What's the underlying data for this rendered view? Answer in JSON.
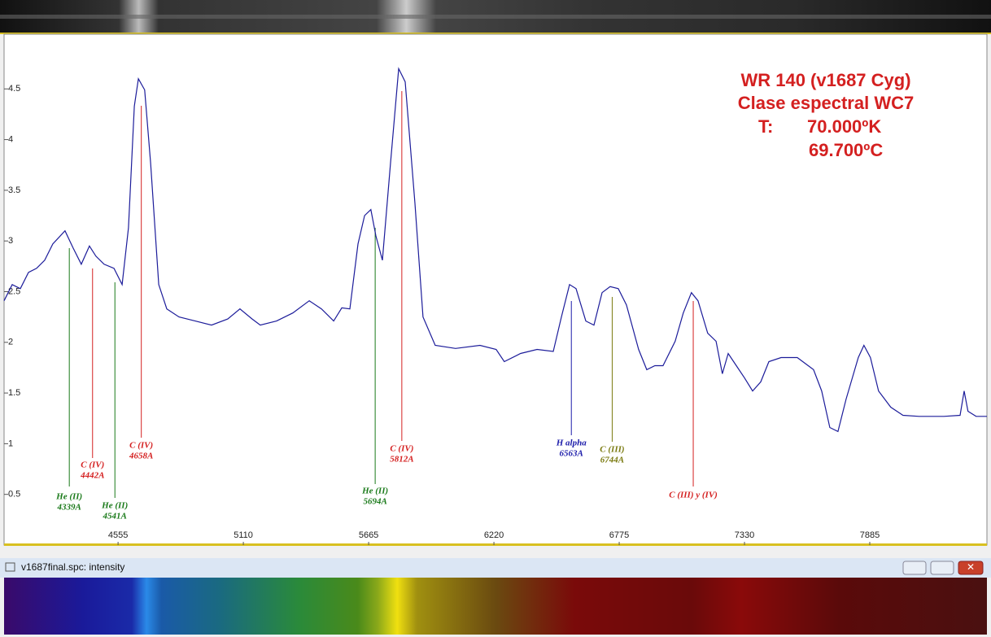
{
  "chart_data": {
    "type": "line",
    "title": [
      "WR 140 (v1687 Cyg)",
      "Clase espectral WC7"
    ],
    "temperature": {
      "label": "T:",
      "kelvin": "70.000ºK",
      "celsius": "69.700ºC"
    },
    "window_title": "v1687final.spc: intensity",
    "line_color": "#1c1c9a",
    "xlim": [
      4050,
      8404
    ],
    "ylim": [
      0,
      5.04
    ],
    "xticks": [
      4555,
      5110,
      5665,
      6220,
      6775,
      7330,
      7885
    ],
    "yticks": [
      0.5,
      1,
      1.5,
      2,
      2.5,
      3,
      3.5,
      4,
      4.5
    ],
    "x": [
      4050,
      4086,
      4122,
      4158,
      4194,
      4230,
      4266,
      4320,
      4356,
      4392,
      4428,
      4457,
      4493,
      4537,
      4573,
      4601,
      4627,
      4645,
      4673,
      4699,
      4735,
      4771,
      4825,
      4897,
      4969,
      5041,
      5095,
      5149,
      5185,
      5257,
      5329,
      5402,
      5456,
      5510,
      5546,
      5582,
      5618,
      5647,
      5675,
      5697,
      5726,
      5762,
      5798,
      5827,
      5870,
      5906,
      5960,
      6050,
      6158,
      6230,
      6266,
      6338,
      6411,
      6483,
      6519,
      6555,
      6584,
      6627,
      6663,
      6699,
      6735,
      6771,
      6807,
      6861,
      6897,
      6933,
      6969,
      7023,
      7059,
      7095,
      7124,
      7167,
      7204,
      7232,
      7258,
      7294,
      7330,
      7366,
      7402,
      7438,
      7492,
      7564,
      7636,
      7672,
      7708,
      7744,
      7780,
      7834,
      7859,
      7888,
      7924,
      7978,
      8032,
      8104,
      8213,
      8285,
      8303,
      8320,
      8356,
      8404
    ],
    "values": [
      2.41,
      2.57,
      2.53,
      2.69,
      2.73,
      2.81,
      2.97,
      3.1,
      2.93,
      2.77,
      2.95,
      2.85,
      2.77,
      2.73,
      2.57,
      3.13,
      4.33,
      4.6,
      4.49,
      3.77,
      2.57,
      2.33,
      2.25,
      2.21,
      2.17,
      2.23,
      2.33,
      2.23,
      2.17,
      2.21,
      2.29,
      2.41,
      2.33,
      2.21,
      2.34,
      2.33,
      2.97,
      3.25,
      3.31,
      3.05,
      2.81,
      3.77,
      4.7,
      4.57,
      3.37,
      2.25,
      1.97,
      1.94,
      1.97,
      1.93,
      1.81,
      1.89,
      1.93,
      1.91,
      2.25,
      2.57,
      2.53,
      2.21,
      2.17,
      2.49,
      2.55,
      2.53,
      2.37,
      1.93,
      1.73,
      1.77,
      1.77,
      2.01,
      2.29,
      2.49,
      2.41,
      2.09,
      2.01,
      1.69,
      1.89,
      1.77,
      1.65,
      1.52,
      1.61,
      1.81,
      1.85,
      1.85,
      1.73,
      1.52,
      1.16,
      1.12,
      1.44,
      1.85,
      1.97,
      1.85,
      1.52,
      1.36,
      1.28,
      1.27,
      1.27,
      1.28,
      1.52,
      1.32,
      1.27,
      1.27
    ],
    "markers": [
      {
        "lines": [
          "He (II)",
          "4339A"
        ],
        "x": 4339,
        "color": "#1a7a1a"
      },
      {
        "lines": [
          "C (IV)",
          "4442A"
        ],
        "x": 4442,
        "color": "#d42020"
      },
      {
        "lines": [
          "He (II)",
          "4541A"
        ],
        "x": 4541,
        "color": "#1a7a1a"
      },
      {
        "lines": [
          "C (IV)",
          "4658A"
        ],
        "x": 4658,
        "color": "#d42020"
      },
      {
        "lines": [
          "He (II)",
          "5694A"
        ],
        "x": 5694,
        "color": "#1a7a1a"
      },
      {
        "lines": [
          "C (IV)",
          "5812A"
        ],
        "x": 5812,
        "color": "#d42020"
      },
      {
        "lines": [
          "H alpha",
          "6563A"
        ],
        "x": 6563,
        "color": "#1c1caa"
      },
      {
        "lines": [
          "C (III)",
          "6744A"
        ],
        "x": 6744,
        "color": "#7a7a10"
      },
      {
        "lines": [
          "C (III) y (IV)"
        ],
        "x": 7103,
        "color": "#d42020"
      }
    ]
  }
}
